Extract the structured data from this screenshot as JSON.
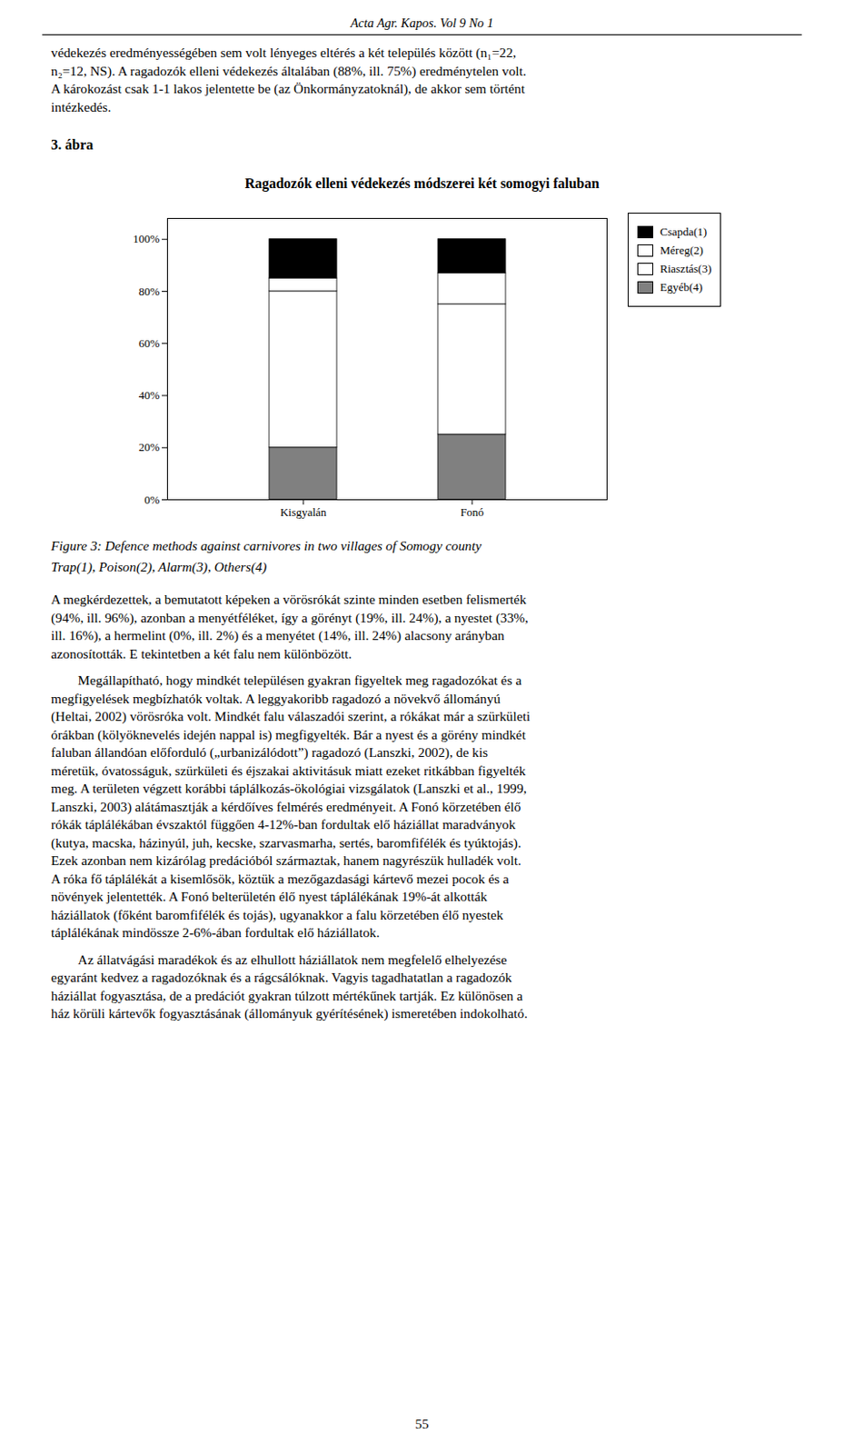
{
  "chart_data": {
    "type": "bar",
    "stacked": true,
    "title": "Ragadozók elleni védekezés módszerei két somogyi faluban",
    "categories": [
      "Kisgyalán",
      "Fonó"
    ],
    "series": [
      {
        "name": "Egyéb(4)",
        "color": "#808080",
        "values": [
          20,
          25
        ]
      },
      {
        "name": "Riasztás(3)",
        "color": "#ffffff",
        "values": [
          60,
          50
        ]
      },
      {
        "name": "Méreg(2)",
        "color": "#ffffff",
        "values": [
          5,
          12
        ]
      },
      {
        "name": "Csapda(1)",
        "color": "#000000",
        "values": [
          15,
          13
        ]
      }
    ],
    "ylim": [
      0,
      108
    ],
    "yticks": [
      {
        "value": 0,
        "label": "0%"
      },
      {
        "value": 20,
        "label": "20%"
      },
      {
        "value": 40,
        "label": "40%"
      },
      {
        "value": 60,
        "label": "60%"
      },
      {
        "value": 80,
        "label": "80%"
      },
      {
        "value": 100,
        "label": "100%"
      }
    ],
    "grid": false,
    "legend": "upper right",
    "annotations": [
      "Acta Agr. Kapos. Vol 9 No 1",
      "védekezés eredményességében sem volt lényeges eltérés a két település között (n₁=22,\nn₂=12, NS). A ragadozók elleni védekezés általában (88%, ill. 75%) eredménytelen volt.\nA károkozást csak 1-1 lakos jelentette be (az Önkormányzatoknál), de akkor sem történt\nintézkedés.",
      "3. ábra",
      "Figure 3: Defence methods against carnivores in two villages of Somogy county",
      "Trap(1), Poison(2), Alarm(3), Others(4)",
      "A megkérdezettek, a bemutatott képeken a vörösrókát szinte minden esetben felismerték\n(94%, ill. 96%), azonban a menyétféléket, így a görényt (19%, ill. 24%), a nyestet (33%,\nill. 16%), a hermelint (0%, ill. 2%) és a menyétet (14%, ill. 24%) alacsony arányban\nazonosították. E tekintetben a két falu nem különbözött.",
      "        Megállapítható, hogy mindkét településen gyakran figyeltek meg ragadozókat és a\nmegfigyelések megbízhatók voltak. A leggyakoribb ragadozó a növekvő állományú\n(Heltai, 2002) vörösróka volt. Mindkét falu válaszadói szerint, a rókákat már a szürkületi\nórákban (kölyöknevelés idején nappal is) megfigyelték. Bár a nyest és a görény mindkét\nfaluban állandóan előforduló („urbanizálódott”) ragadozó (Lanszki, 2002), de kis\nméretük, óvatosságuk, szürkületi és éjszakai aktivitásuk miatt ezeket ritkábban figyelték\nmeg. A területen végzett korábbi táplálkozás-ökológiai vizsgálatok (Lanszki et al., 1999,\nLanszki, 2003) alátámasztják a kérdőíves felmérés eredményeit. A Fonó körzetében élő\nrókák táplálékában évszaktól függően 4-12%-ban fordultak elő háziállat maradványok\n(kutya, macska, házinyúl, juh, kecske, szarvasmarha, sertés, baromfifélék és tyúktojás).\nEzek azonban nem kizárólag predációból származtak, hanem nagyrészük hulladék volt.\nA róka fő táplálékát a kisemlősök, köztük a mezőgazdasági kártevő mezei pocok és a\nnövények jelentették. A Fonó belterületén élő nyest táplálékának 19%-át alkották\nháziállatok (főként baromfifélék és tojás), ugyanakkor a falu körzetében élő nyestek\ntáplálékának mindössze 2-6%-ában fordultak elő háziállatok.",
      "        Az állatvágási maradékok és az elhullott háziállatok nem megfelelő elhelyezése\negyaránt kedvez a ragadozóknak és a rágcsálóknak. Vagyis tagadhatatlan a ragadozók\nháziállat fogyasztása, de a predációt gyakran túlzott mértékűnek tartják. Ez különösen a\nház körüli kártevők fogyasztásának (állományuk gyérítésének) ismeretében indokolható.",
      "55"
    ]
  }
}
